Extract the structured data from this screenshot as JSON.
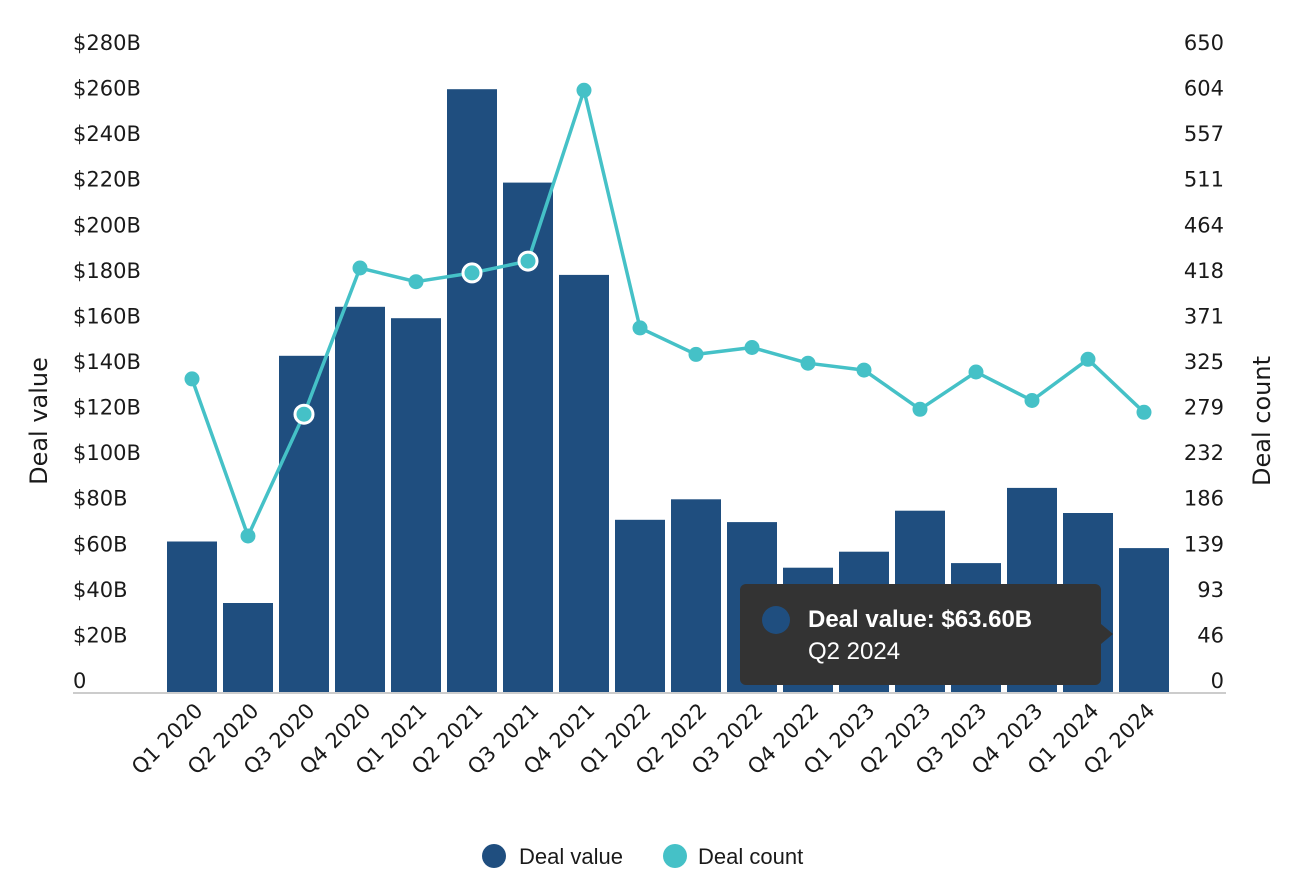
{
  "chart_data": {
    "type": "bar",
    "categories": [
      "Q1 2020",
      "Q2 2020",
      "Q3 2020",
      "Q4 2020",
      "Q1 2021",
      "Q2 2021",
      "Q3 2021",
      "Q4 2021",
      "Q1 2022",
      "Q2 2022",
      "Q3 2022",
      "Q4 2022",
      "Q1 2023",
      "Q2 2023",
      "Q3 2023",
      "Q4 2023",
      "Q1 2024",
      "Q2 2024"
    ],
    "series": [
      {
        "name": "Deal value",
        "axis": "left",
        "kind": "bar",
        "color": "#1f4e7f",
        "values": [
          66.5,
          39.5,
          148.0,
          169.5,
          164.5,
          265.0,
          224.0,
          183.5,
          76.0,
          85.0,
          75.0,
          55.0,
          62.0,
          80.0,
          57.0,
          90.0,
          79.0,
          63.6
        ]
      },
      {
        "name": "Deal count",
        "axis": "right",
        "kind": "line",
        "color": "#45c1c7",
        "values": [
          320,
          160,
          284,
          433,
          419,
          428,
          440,
          614,
          372,
          345,
          352,
          336,
          329,
          289,
          327,
          298,
          340,
          286
        ]
      }
    ],
    "highlighted_points": [
      2,
      5,
      6
    ],
    "left_axis": {
      "title": "Deal value",
      "min": 0,
      "max": 280,
      "ticks": [
        "0",
        "$20B",
        "$40B",
        "$60B",
        "$80B",
        "$100B",
        "$120B",
        "$140B",
        "$160B",
        "$180B",
        "$200B",
        "$220B",
        "$240B",
        "$260B",
        "$280B"
      ]
    },
    "right_axis": {
      "title": "Deal count",
      "min": 0,
      "max": 650,
      "ticks": [
        "0",
        "46",
        "93",
        "139",
        "186",
        "232",
        "279",
        "325",
        "371",
        "418",
        "464",
        "511",
        "557",
        "604",
        "650"
      ]
    },
    "legend": {
      "position": "bottom-center",
      "items": [
        {
          "label": "Deal value",
          "color": "#1f4e7f"
        },
        {
          "label": "Deal count",
          "color": "#45c1c7"
        }
      ]
    },
    "tooltip": {
      "title": "Deal value: $63.60B",
      "subtitle": "Q2 2024",
      "category_index": 17,
      "marker_color": "#1f4e7f"
    },
    "grid": false
  }
}
